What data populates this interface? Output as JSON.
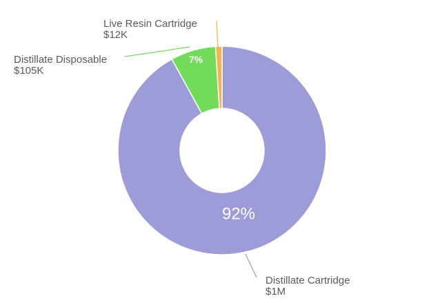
{
  "chart_data": {
    "type": "pie",
    "variant": "donut",
    "slices": [
      {
        "name": "Distillate Cartridge",
        "value_label": "$1M",
        "percent": 92.0,
        "percent_label": "92%",
        "color": "#9d9bd8"
      },
      {
        "name": "Distillate Disposable",
        "value_label": "$105K",
        "percent": 7.0,
        "percent_label": "7%",
        "color": "#72db5a"
      },
      {
        "name": "Live Resin Cartridge",
        "value_label": "$12K",
        "percent": 1.0,
        "percent_label": "",
        "color": "#f5b34d"
      }
    ]
  }
}
